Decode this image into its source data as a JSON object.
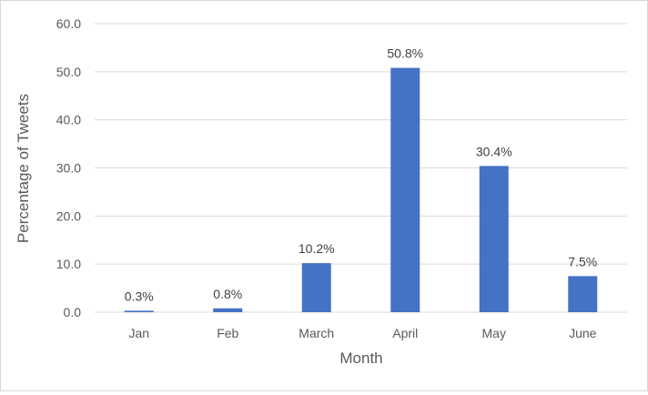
{
  "chart_data": {
    "type": "bar",
    "title": "",
    "xlabel": "Month",
    "ylabel": "Percentage of Tweets",
    "categories": [
      "Jan",
      "Feb",
      "March",
      "April",
      "May",
      "June"
    ],
    "values": [
      0.3,
      0.8,
      10.2,
      50.8,
      30.4,
      7.5
    ],
    "data_labels": [
      "0.3%",
      "0.8%",
      "10.2%",
      "50.8%",
      "30.4%",
      "7.5%"
    ],
    "ylim": [
      0,
      60
    ],
    "yticks": [
      0,
      10,
      20,
      30,
      40,
      50,
      60
    ],
    "ytick_labels": [
      "0.0",
      "10.0",
      "20.0",
      "30.0",
      "40.0",
      "50.0",
      "60.0"
    ],
    "grid": true,
    "legend": "none",
    "bar_color": "#4472c4",
    "grid_color": "#d9d9d9"
  }
}
